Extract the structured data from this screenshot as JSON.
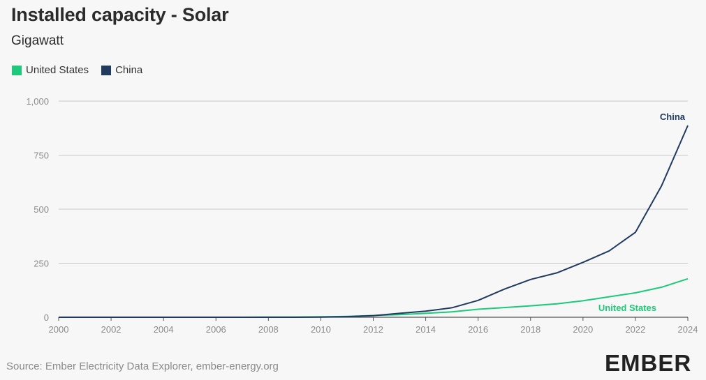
{
  "title": "Installed capacity - Solar",
  "subtitle": "Gigawatt",
  "legend": [
    {
      "label": "United States",
      "color": "#1dc97a"
    },
    {
      "label": "China",
      "color": "#203a60"
    }
  ],
  "source": "Source: Ember Electricity Data Explorer, ember-energy.org",
  "logo": {
    "text": "EMBER",
    "accent": "#1dc97a"
  },
  "chart_data": {
    "type": "line",
    "title": "Installed capacity - Solar",
    "ylabel": "Gigawatt",
    "xlabel": "",
    "xlim": [
      2000,
      2024
    ],
    "ylim": [
      0,
      1000
    ],
    "yticks": [
      0,
      250,
      500,
      750,
      1000
    ],
    "ytick_labels": [
      "0",
      "250",
      "500",
      "750",
      "1,000"
    ],
    "xticks": [
      2000,
      2002,
      2004,
      2006,
      2008,
      2010,
      2012,
      2014,
      2016,
      2018,
      2020,
      2022,
      2024
    ],
    "grid": true,
    "legend_position": "top-left",
    "x": [
      2000,
      2001,
      2002,
      2003,
      2004,
      2005,
      2006,
      2007,
      2008,
      2009,
      2010,
      2011,
      2012,
      2013,
      2014,
      2015,
      2016,
      2017,
      2018,
      2019,
      2020,
      2021,
      2022,
      2023,
      2024
    ],
    "series": [
      {
        "name": "United States",
        "color": "#1dc97a",
        "end_label": "United States",
        "values": [
          0,
          0,
          0,
          0,
          0,
          0,
          0,
          0,
          1,
          1,
          2,
          4,
          8,
          12,
          18,
          25,
          37,
          45,
          53,
          62,
          76,
          95,
          113,
          139,
          178
        ]
      },
      {
        "name": "China",
        "color": "#203a60",
        "end_label": "China",
        "values": [
          0,
          0,
          0,
          0,
          0,
          0,
          0,
          0,
          0,
          0,
          1,
          3,
          7,
          18,
          28,
          44,
          78,
          130,
          175,
          205,
          254,
          307,
          393,
          609,
          887
        ]
      }
    ]
  }
}
